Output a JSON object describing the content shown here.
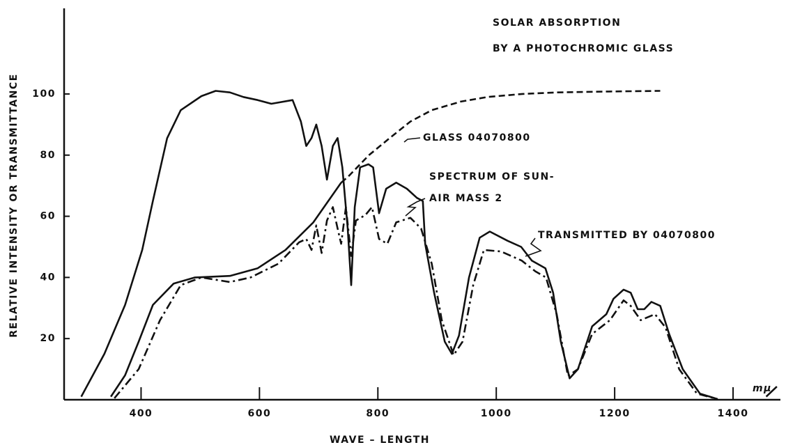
{
  "chart_data": {
    "type": "line",
    "xlabel": "WAVE – LENGTH",
    "ylabel": "RELATIVE INTENSITY OR TRANSMITTANCE",
    "xlim": [
      270,
      1480
    ],
    "ylim": [
      0,
      128
    ],
    "xticks": [
      400,
      600,
      800,
      1000,
      1200,
      1400
    ],
    "yticks": [
      20,
      40,
      60,
      80,
      100
    ],
    "annotations": [
      "SOLAR ABSORPTION",
      "BY A PHOTOCHROMIC GLASS",
      "GLASS 04070800",
      "SPECTRUM OF SUN-",
      "AIR MASS 2",
      "TRANSMITTED BY 04070800",
      "mμ"
    ],
    "series": [
      {
        "color": "#111111",
        "style": "solid",
        "x": [
          299,
          338,
          373,
          402,
          420,
          444,
          467,
          502,
          526,
          550,
          573,
          597,
          620,
          656,
          670,
          679,
          688,
          696,
          705,
          714,
          724,
          732,
          740,
          749,
          755,
          761,
          770,
          784,
          792,
          802,
          814,
          831,
          849,
          866,
          876,
          880,
          895,
          913,
          925,
          937,
          954,
          972,
          989,
          1019,
          1042,
          1060,
          1083,
          1096,
          1109,
          1124,
          1138,
          1162,
          1186,
          1198,
          1215,
          1227,
          1239,
          1250,
          1262,
          1277,
          1292,
          1315,
          1344,
          1374,
          null,
          1456,
          1474
        ],
        "values": [
          1,
          15,
          31,
          49,
          65,
          85.5,
          94.7,
          99.3,
          101,
          100.5,
          99,
          98,
          96.8,
          98,
          91,
          83,
          85.6,
          90,
          83,
          72,
          83,
          85.6,
          76,
          56,
          37.5,
          63,
          76,
          77,
          76,
          61,
          69,
          71,
          69,
          66,
          65,
          51,
          35,
          19,
          15,
          21,
          40,
          53,
          55,
          52,
          50,
          45.5,
          43,
          35,
          19,
          7,
          10,
          24,
          28,
          33,
          36,
          35,
          29.6,
          29.6,
          32,
          30.7,
          21.5,
          10,
          2,
          0.2,
          null,
          1,
          4.3
        ]
      },
      {
        "color": "#111111",
        "style": "solid",
        "x": [
          349,
          373,
          396,
          420,
          455,
          491,
          550,
          597,
          644,
          691,
          738
        ],
        "values": [
          1,
          8,
          19,
          31,
          38,
          40,
          40.5,
          43,
          49,
          58,
          71
        ]
      },
      {
        "color": "#111111",
        "style": "dashed",
        "x": [
          738,
          750,
          785,
          820,
          855,
          891,
          940,
          985,
          1044,
          1103,
          1190,
          1277
        ],
        "values": [
          71,
          73,
          80,
          85.6,
          91,
          94.7,
          97.5,
          99,
          100,
          100.5,
          100.8,
          101
        ]
      },
      {
        "color": "#111111",
        "style": "dashdot",
        "x": [
          355,
          396,
          432,
          467,
          502,
          550,
          585,
          632,
          667,
          679,
          688,
          696,
          705,
          714,
          724,
          732,
          738,
          746,
          755,
          763,
          779,
          790,
          802,
          816,
          831,
          855,
          873,
          891,
          908,
          928,
          943,
          961,
          979,
          1008,
          1043,
          1066,
          1084,
          1102,
          1121,
          1138,
          1162,
          1192,
          1215,
          1227,
          1244,
          1268,
          1286,
          1309,
          1339,
          1374
        ],
        "values": [
          0.5,
          10,
          26,
          37.5,
          40,
          38.5,
          40,
          44.5,
          51.5,
          52.6,
          49,
          57,
          48,
          58.6,
          63,
          56,
          51,
          63,
          47,
          58.6,
          60.4,
          63,
          52.6,
          51,
          58,
          59.5,
          56,
          44.5,
          26,
          14.6,
          19,
          37.5,
          49,
          48.5,
          45.5,
          42,
          40,
          28,
          7.8,
          10,
          21.5,
          26,
          32.5,
          30.7,
          26,
          28,
          23.6,
          10,
          2,
          0.2
        ]
      }
    ]
  }
}
